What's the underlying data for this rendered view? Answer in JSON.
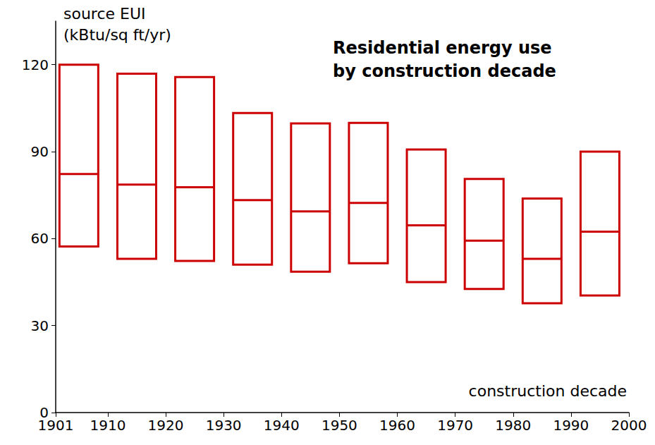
{
  "chart_data": {
    "type": "box",
    "title": "Residential energy use\nby construction decade",
    "ylabel": "source EUI\n(kBtu/sq ft/yr)",
    "xlabel": "construction decade",
    "x": [
      1905,
      1915,
      1925,
      1935,
      1945,
      1955,
      1965,
      1975,
      1985,
      1995
    ],
    "low": [
      57.3,
      53,
      52.3,
      51,
      48.6,
      51.5,
      45,
      42.6,
      37.7,
      40.4
    ],
    "median": [
      82.3,
      78.6,
      77.7,
      73.3,
      69.4,
      72.3,
      64.6,
      59.3,
      53,
      62.4
    ],
    "high": [
      120,
      116.9,
      115.7,
      103.3,
      99.7,
      99.9,
      90.7,
      80.6,
      73.8,
      90
    ],
    "color": "#cc0000",
    "xlim": [
      1901,
      2000
    ],
    "xticks": [
      1901,
      1910,
      1920,
      1930,
      1940,
      1950,
      1960,
      1970,
      1980,
      1990,
      2000
    ],
    "ylim": [
      0,
      135
    ],
    "yticks": [
      0,
      30,
      60,
      90,
      120
    ],
    "grid": false
  }
}
